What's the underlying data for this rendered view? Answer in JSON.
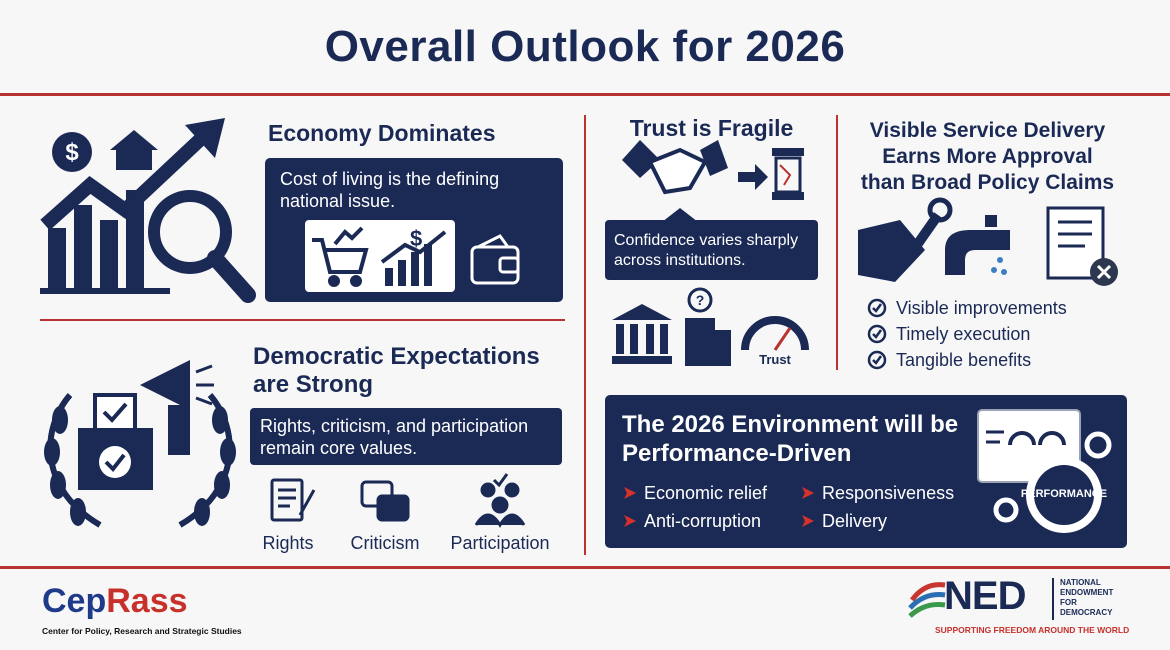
{
  "header": {
    "title": "Overall Outlook for 2026"
  },
  "economy": {
    "heading": "Economy Dominates",
    "text": "Cost of living is the defining national issue."
  },
  "democracy": {
    "heading": [
      "Democratic Expectations",
      "are Strong"
    ],
    "text": "Rights, criticism, and participation remain core values.",
    "items": [
      "Rights",
      "Criticism",
      "Participation"
    ]
  },
  "trust": {
    "heading": "Trust is Fragile",
    "text": "Confidence varies sharply across institutions.",
    "gauge_label": "Trust"
  },
  "service": {
    "heading": [
      "Visible Service Delivery",
      "Earns More Approval",
      "than Broad Policy Claims"
    ],
    "checklist": [
      "Visible improvements",
      "Timely execution",
      "Tangible benefits"
    ]
  },
  "environment": {
    "heading": [
      "The 2026 Environment will be",
      "Performance-Driven"
    ],
    "items": [
      "Economic relief",
      "Responsiveness",
      "Anti-corruption",
      "Delivery"
    ],
    "badge": "PERFORMANCE"
  },
  "footer": {
    "left_logo": {
      "name_part1": "Cep",
      "name_part2": "Rass",
      "subtitle": "Center for Policy, Research and Strategic Studies"
    },
    "right_logo": {
      "name": "NED",
      "org_lines": [
        "NATIONAL",
        "ENDOWMENT",
        "FOR",
        "DEMOCRACY"
      ],
      "tagline": "SUPPORTING FREEDOM AROUND THE WORLD"
    }
  }
}
